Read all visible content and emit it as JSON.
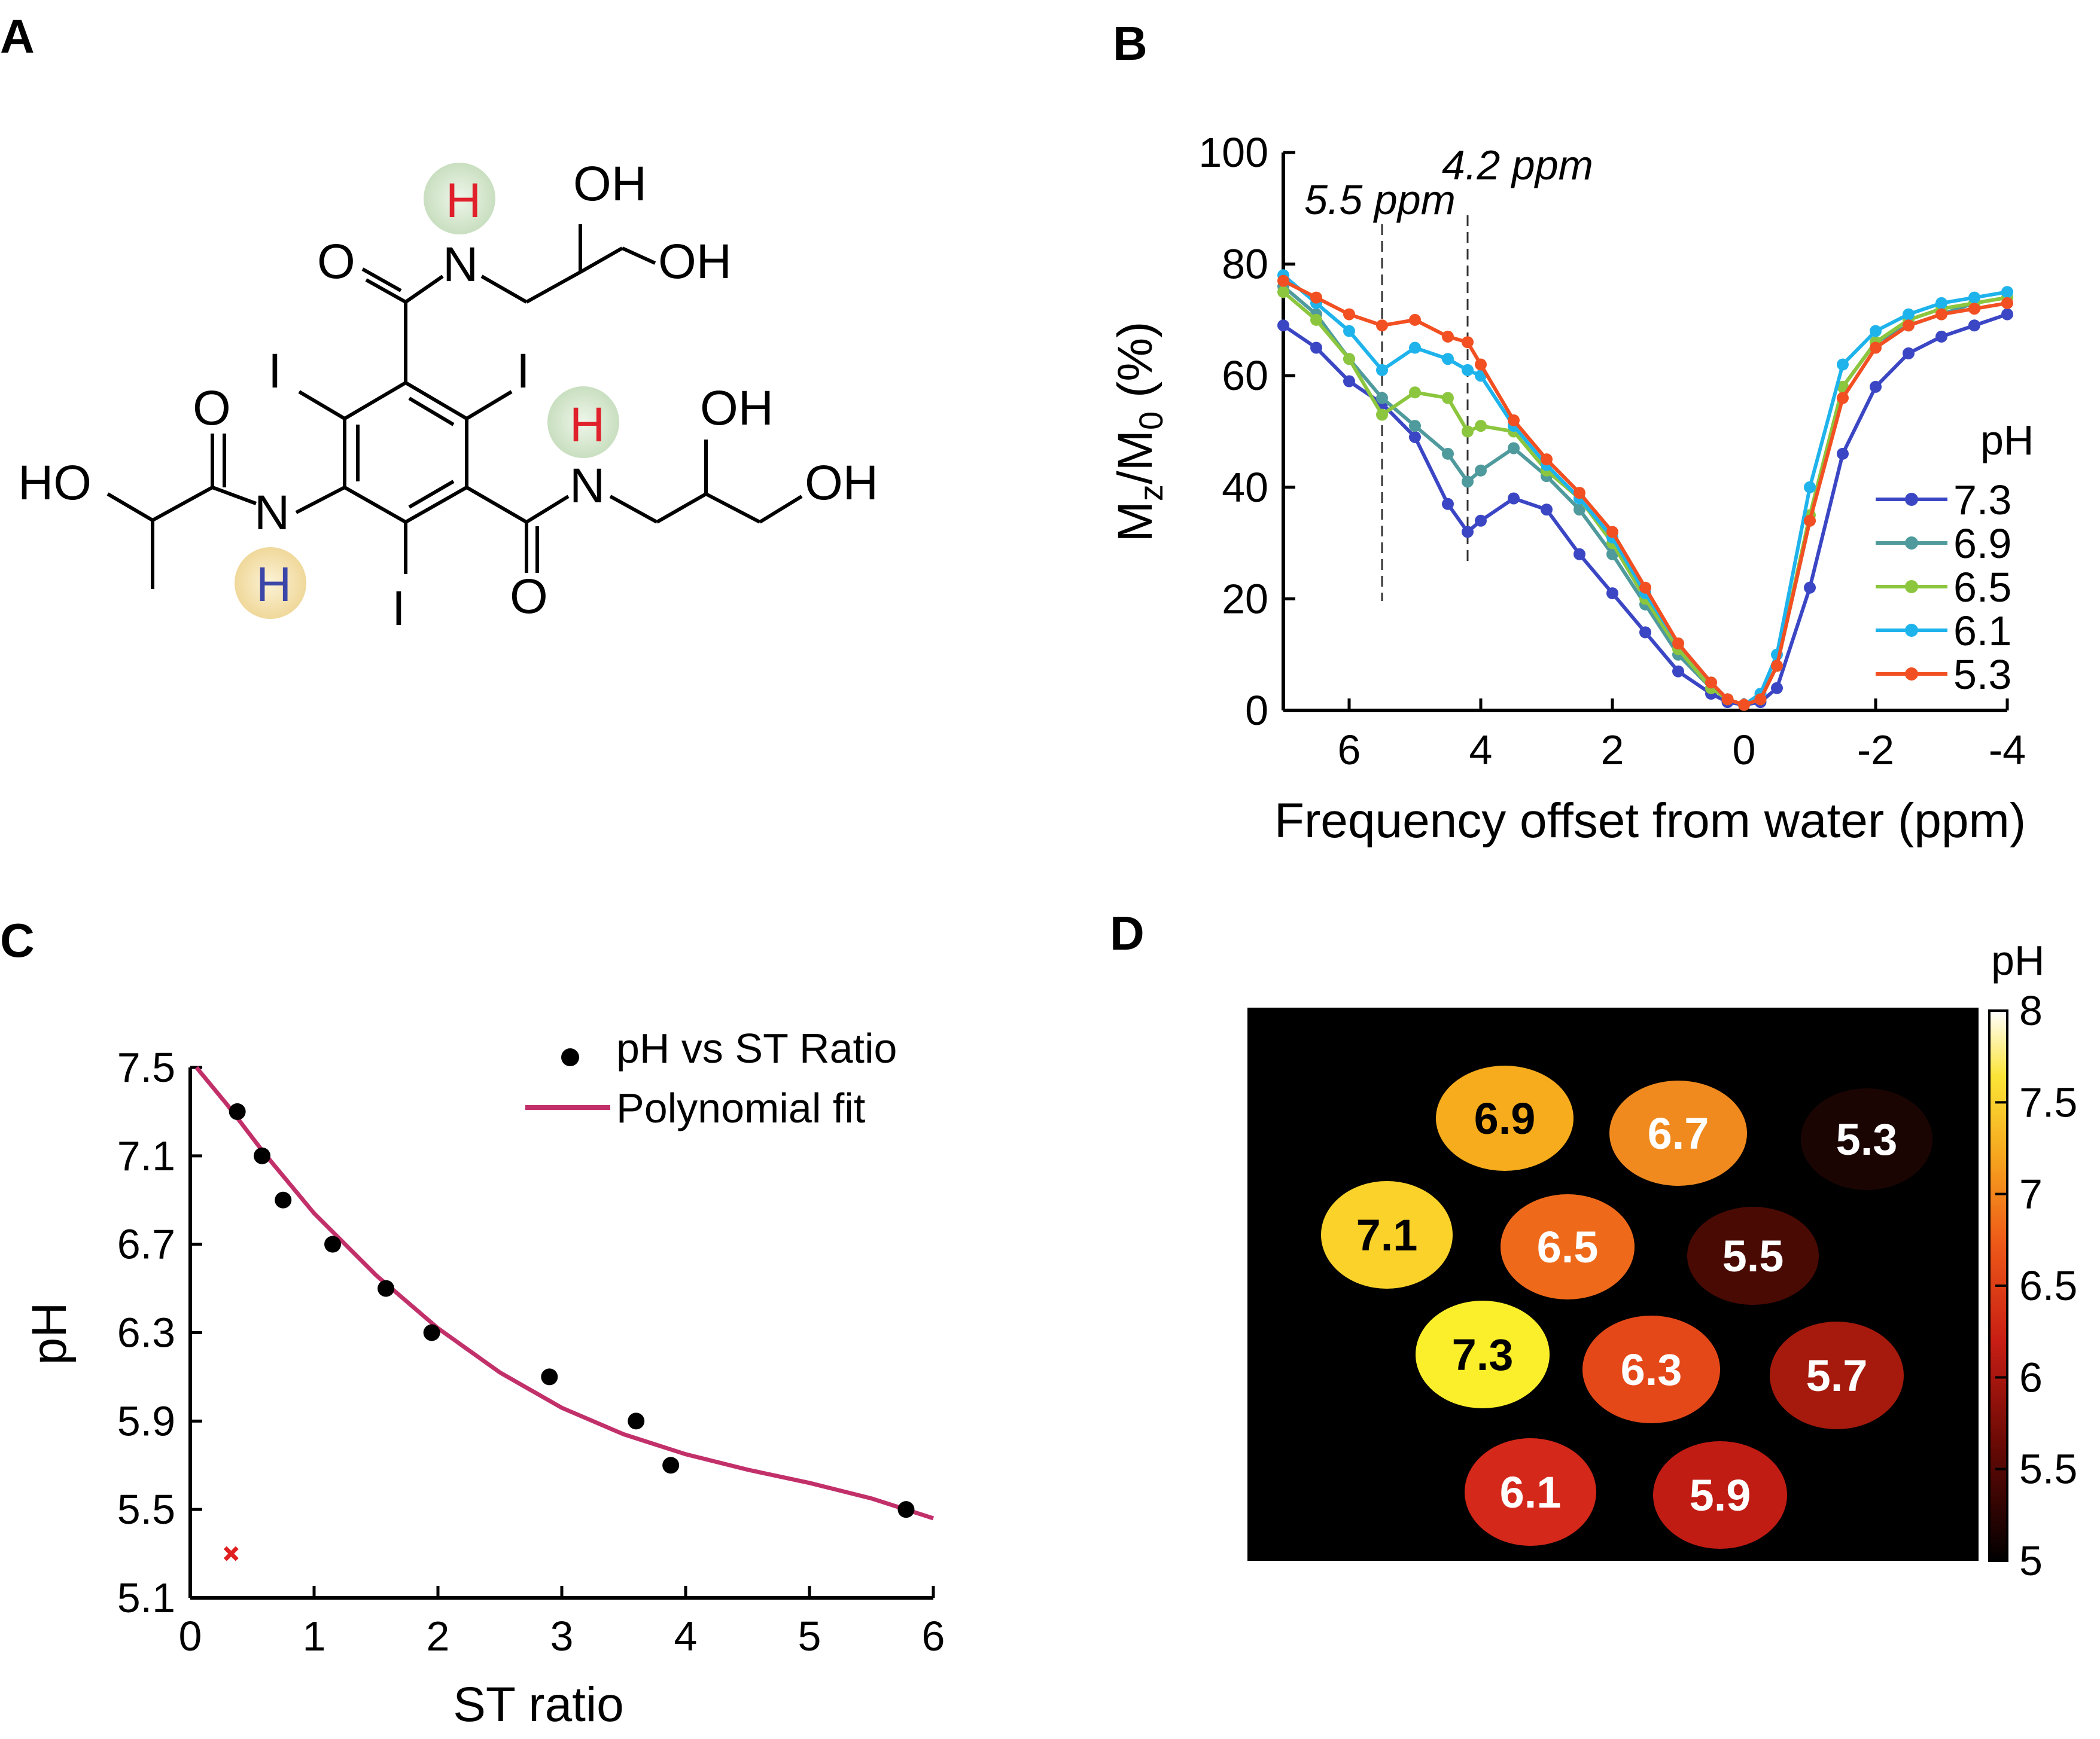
{
  "panels": {
    "A": "A",
    "B": "B",
    "C": "C",
    "D": "D"
  },
  "structure": {
    "atoms": {
      "H_red_top": "H",
      "N_top": "N",
      "O_top": "O",
      "OH_top1": "OH",
      "OH_top2": "OH",
      "I_left": "I",
      "I_right": "I",
      "I_bottom": "I",
      "O_left": "O",
      "HO_left": "HO",
      "N_left": "N",
      "H_blue": "H",
      "H_red_right": "H",
      "N_right": "N",
      "O_bottom": "O",
      "OH_right1": "OH",
      "OH_right2": "OH"
    },
    "colors": {
      "red_h": "#e0202a",
      "blue_h": "#3b46a8",
      "green_halo": "#cfe3c6",
      "yellow_halo": "#f3dfa6"
    }
  },
  "chart_data": [
    {
      "panel": "B",
      "type": "line",
      "xlabel": "Frequency offset from water (ppm)",
      "ylabel_main": "M",
      "ylabel_sub1": "z",
      "ylabel_mid": "/M",
      "ylabel_sub2": "0",
      "ylabel_end": " (%)",
      "xlim": [
        7,
        -4
      ],
      "ylim": [
        0,
        100
      ],
      "xticks": [
        "6",
        "4",
        "2",
        "0",
        "-2",
        "-4"
      ],
      "yticks": [
        "0",
        "20",
        "40",
        "60",
        "80",
        "100"
      ],
      "annotations": [
        {
          "text": "5.5 ppm",
          "x": 5.5
        },
        {
          "text": "4.2 ppm",
          "x": 4.2
        }
      ],
      "legend_title": "pH",
      "legend_position": "right",
      "x": [
        7,
        6.5,
        6,
        5.5,
        5,
        4.5,
        4.2,
        4,
        3.5,
        3,
        2.5,
        2,
        1.5,
        1,
        0.5,
        0.25,
        0,
        -0.25,
        -0.5,
        -1,
        -1.5,
        -2,
        -2.5,
        -3,
        -3.5,
        -4
      ],
      "series": [
        {
          "name": "7.3",
          "color": "#3b46c4",
          "values": [
            69,
            65,
            59,
            55,
            49,
            37,
            32,
            34,
            38,
            36,
            28,
            21,
            14,
            7,
            3,
            1.5,
            1,
            1.5,
            4,
            22,
            46,
            58,
            64,
            67,
            69,
            71
          ]
        },
        {
          "name": "6.9",
          "color": "#4f9a9c",
          "values": [
            76,
            71,
            63,
            56,
            51,
            46,
            41,
            43,
            47,
            42,
            36,
            28,
            19,
            10,
            4,
            2,
            1,
            2,
            8,
            34,
            58,
            66,
            69,
            71,
            73,
            74
          ]
        },
        {
          "name": "6.5",
          "color": "#8cc63e",
          "values": [
            75,
            70,
            63,
            53,
            57,
            56,
            50,
            51,
            50,
            43,
            38,
            30,
            20,
            11,
            4,
            2,
            1,
            2,
            8,
            35,
            58,
            66,
            70,
            72,
            73,
            74
          ]
        },
        {
          "name": "6.1",
          "color": "#1fb3ec",
          "values": [
            78,
            73,
            68,
            61,
            65,
            63,
            61,
            60,
            51,
            44,
            38,
            31,
            21,
            12,
            5,
            2,
            1,
            3,
            10,
            40,
            62,
            68,
            71,
            73,
            74,
            75
          ]
        },
        {
          "name": "5.3",
          "color": "#f25022",
          "values": [
            77,
            74,
            71,
            69,
            70,
            67,
            66,
            62,
            52,
            45,
            39,
            32,
            22,
            12,
            5,
            2,
            1,
            2,
            8,
            34,
            56,
            65,
            69,
            71,
            72,
            73
          ]
        }
      ]
    },
    {
      "panel": "C",
      "type": "scatter",
      "xlabel": "ST ratio",
      "ylabel": "pH",
      "xlim": [
        0,
        6
      ],
      "ylim": [
        5.1,
        7.5
      ],
      "xticks": [
        "0",
        "1",
        "2",
        "3",
        "4",
        "5",
        "6"
      ],
      "yticks": [
        "5.1",
        "5.5",
        "5.9",
        "6.3",
        "6.7",
        "7.1",
        "7.5"
      ],
      "legend_position": "top-right",
      "points_name": "pH vs ST Ratio",
      "points_color": "#000000",
      "points": [
        [
          0.38,
          7.3
        ],
        [
          0.58,
          7.1
        ],
        [
          0.75,
          6.9
        ],
        [
          1.15,
          6.7
        ],
        [
          1.58,
          6.5
        ],
        [
          1.95,
          6.3
        ],
        [
          2.9,
          6.1
        ],
        [
          3.6,
          5.9
        ],
        [
          3.88,
          5.7
        ],
        [
          5.78,
          5.5
        ]
      ],
      "outlier": {
        "x": 0.33,
        "y": 5.3,
        "color": "#e02020"
      },
      "fit_name": "Polynomial fit",
      "fit_color": "#c2306a",
      "fit_points": [
        [
          0.05,
          7.5
        ],
        [
          0.3,
          7.33
        ],
        [
          0.6,
          7.11
        ],
        [
          1.0,
          6.84
        ],
        [
          1.5,
          6.56
        ],
        [
          2.0,
          6.32
        ],
        [
          2.5,
          6.12
        ],
        [
          3.0,
          5.96
        ],
        [
          3.5,
          5.84
        ],
        [
          4.0,
          5.75
        ],
        [
          4.5,
          5.68
        ],
        [
          5.0,
          5.62
        ],
        [
          5.5,
          5.55
        ],
        [
          6.0,
          5.46
        ]
      ]
    },
    {
      "panel": "D",
      "type": "heatmap",
      "colorbar_title": "pH",
      "colorbar_range": [
        5,
        8
      ],
      "colorbar_ticks": [
        "5",
        "5.5",
        "6",
        "6.5",
        "7",
        "7.5",
        "8"
      ],
      "spots": [
        {
          "label": "6.9",
          "value": 6.9,
          "color": "#f6ac1c",
          "text_color": "#000000"
        },
        {
          "label": "6.7",
          "value": 6.7,
          "color": "#f08a1e",
          "text_color": "#ffffff"
        },
        {
          "label": "5.3",
          "value": 5.3,
          "color": "#1a0503",
          "text_color": "#ffffff"
        },
        {
          "label": "7.1",
          "value": 7.1,
          "color": "#fbd22a",
          "text_color": "#000000"
        },
        {
          "label": "6.5",
          "value": 6.5,
          "color": "#ee6a1a",
          "text_color": "#ffffff"
        },
        {
          "label": "5.5",
          "value": 5.5,
          "color": "#4a0a04",
          "text_color": "#ffffff"
        },
        {
          "label": "7.3",
          "value": 7.3,
          "color": "#fbee2a",
          "text_color": "#000000"
        },
        {
          "label": "6.3",
          "value": 6.3,
          "color": "#e54818",
          "text_color": "#ffffff"
        },
        {
          "label": "5.7",
          "value": 5.7,
          "color": "#a51a0c",
          "text_color": "#ffffff"
        },
        {
          "label": "6.1",
          "value": 6.1,
          "color": "#d4281a",
          "text_color": "#ffffff"
        },
        {
          "label": "5.9",
          "value": 5.9,
          "color": "#c01c14",
          "text_color": "#ffffff"
        }
      ]
    }
  ]
}
